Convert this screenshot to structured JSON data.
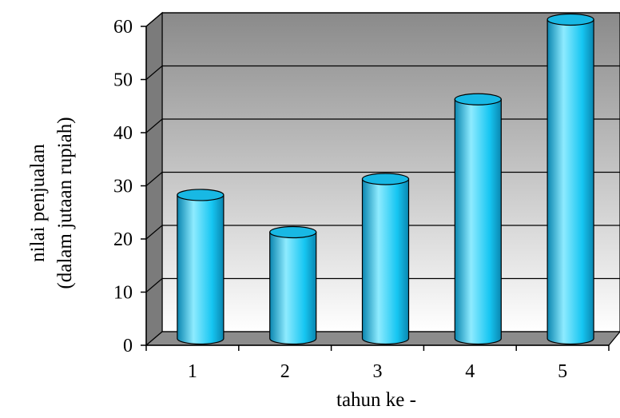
{
  "chart_data": {
    "type": "bar",
    "title": "",
    "categories": [
      "1",
      "2",
      "3",
      "4",
      "5"
    ],
    "values": [
      27,
      20,
      30,
      45,
      60
    ],
    "xlabel": "tahun ke -",
    "ylabel_lines": [
      "nilai penjualan",
      "(dalam jutaan rupiah)"
    ],
    "ylim": [
      0,
      60
    ],
    "yticks": [
      "0",
      "10",
      "20",
      "30",
      "40",
      "50",
      "60"
    ],
    "grid": true,
    "legend": "none",
    "style": "3d-cylinder"
  },
  "colors": {
    "bar_light": "#8EEBFF",
    "bar_main": "#16C6F2",
    "bar_dark": "#0A86B0",
    "bar_top": "#18B8E4",
    "wall_top": "#8A8A8A",
    "wall_bottom": "#FFFFFF",
    "side_wall": "#7B7B7B",
    "floor": "#8C8C8C",
    "gridline": "#000000"
  }
}
